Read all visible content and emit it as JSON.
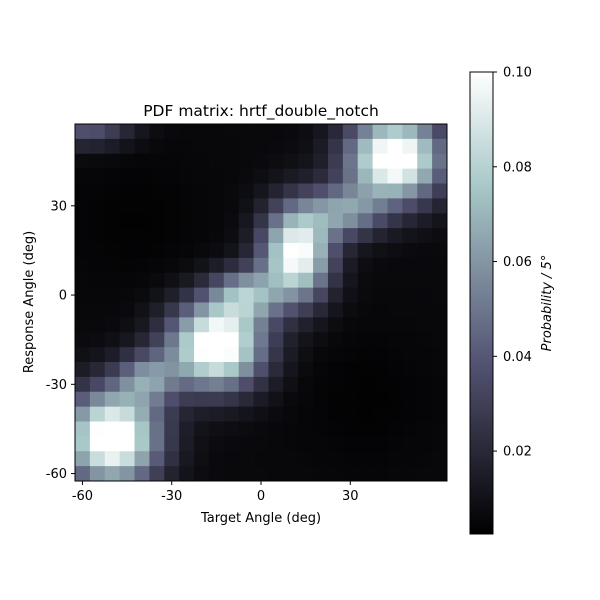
{
  "chart_data": {
    "type": "heatmap",
    "title": "PDF matrix: hrtf_double_notch",
    "xlabel": "Target Angle (deg)",
    "ylabel": "Response Angle (deg)",
    "x_ticks": [
      -60,
      -30,
      0,
      30
    ],
    "y_ticks": [
      -60,
      -30,
      0,
      30
    ],
    "x_range": [
      -62.5,
      62.5
    ],
    "y_range": [
      -62.5,
      57.5
    ],
    "grid_x_count": 25,
    "grid_y_count": 24,
    "colormap": "bone",
    "colorbar": {
      "label": "Probability / 5°",
      "ticks": [
        0.02,
        0.04,
        0.06,
        0.08,
        0.1
      ],
      "tick_labels": [
        "0.02",
        "0.04",
        "0.06",
        "0.08",
        "0.10"
      ],
      "vmin": 0.0025,
      "vmax": 0.1
    },
    "features": [
      {
        "name": "lower-left block",
        "x_range": [
          -62,
          -35
        ],
        "y_range": [
          -60,
          -32
        ],
        "value": 0.1
      },
      {
        "name": "mid band",
        "x_range": [
          -30,
          0
        ],
        "y_range": [
          -30,
          -5
        ],
        "value": 0.1
      },
      {
        "name": "center peak",
        "x_range": [
          5,
          20
        ],
        "y_range": [
          5,
          25
        ],
        "value": 0.1
      },
      {
        "name": "upper-right block",
        "x_range": [
          35,
          55
        ],
        "y_range": [
          35,
          55
        ],
        "value": 0.1
      }
    ]
  }
}
